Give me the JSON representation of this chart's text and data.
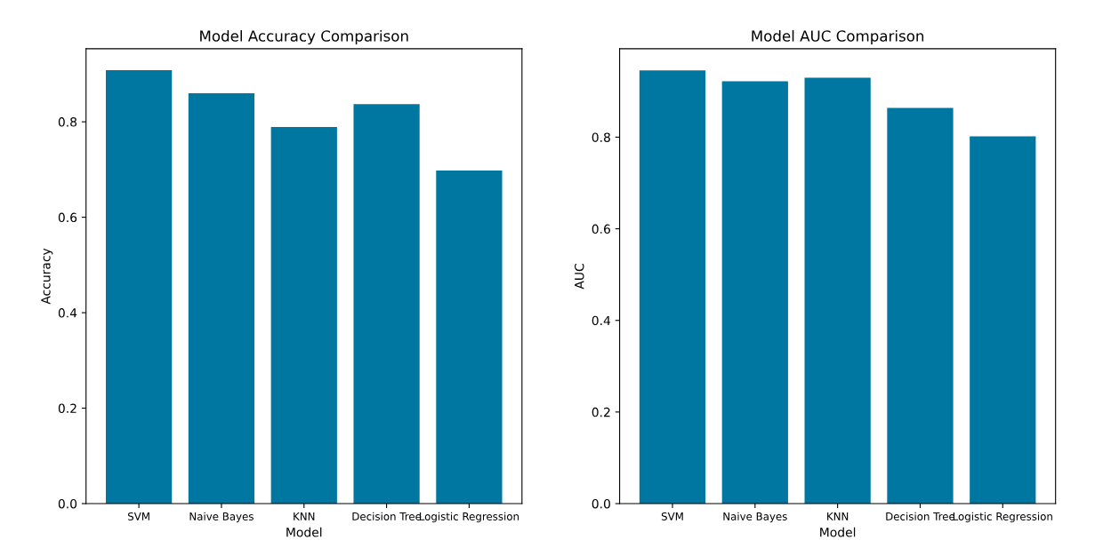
{
  "chart_data": [
    {
      "type": "bar",
      "title": "Model Accuracy Comparison",
      "xlabel": "Model",
      "ylabel": "Accuracy",
      "categories": [
        "SVM",
        "Naive Bayes",
        "KNN",
        "Decision Tree",
        "Logistic Regression"
      ],
      "values": [
        0.908,
        0.86,
        0.789,
        0.837,
        0.698
      ],
      "color": "#0077a0",
      "ylim": [
        0,
        0.953
      ],
      "yticks": [
        {
          "value": 0,
          "label": "0.0"
        },
        0.2,
        0.4,
        0.6,
        0.8
      ],
      "grid": false
    },
    {
      "type": "bar",
      "title": "Model AUC Comparison",
      "xlabel": "Model",
      "ylabel": "AUC",
      "categories": [
        "SVM",
        "Naive Bayes",
        "KNN",
        "Decision Tree",
        "Logistic Regression"
      ],
      "values": [
        0.946,
        0.922,
        0.93,
        0.864,
        0.802
      ],
      "color": "#0077a0",
      "ylim": [
        0,
        0.993
      ],
      "yticks": [
        {
          "value": 0,
          "label": "0.0"
        },
        0.2,
        0.4,
        0.6,
        0.8
      ],
      "grid": false
    }
  ]
}
